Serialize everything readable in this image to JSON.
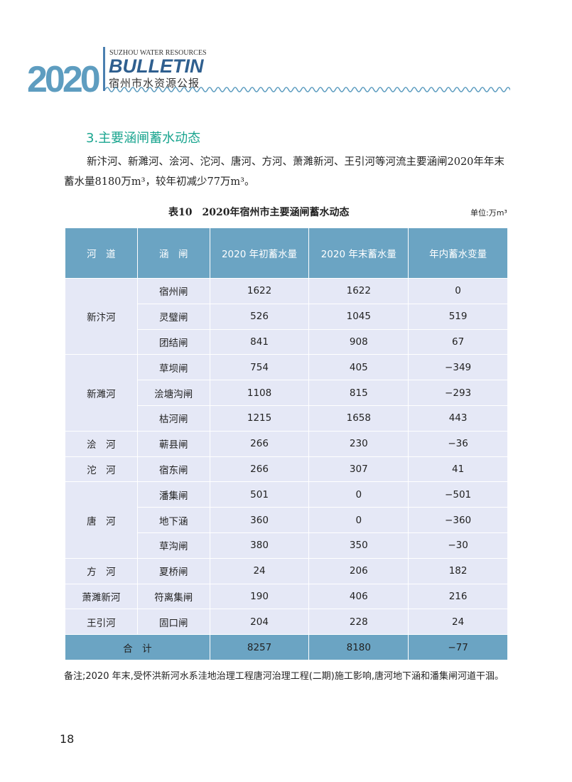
{
  "header": {
    "year": "2020",
    "english": "SUZHOU WATER RESOURCES",
    "bulletin": "BULLETIN",
    "chinese": "宿州市水资源公报"
  },
  "section_title": "3.主要涵闸蓄水动态",
  "paragraph": "新汴河、新濉河、浍河、沱河、唐河、方河、萧濉新河、王引河等河流主要涵闸2020年年末蓄水量8180万m³，较年初减少77万m³。",
  "table": {
    "title": "表10　2020年宿州市主要涵闸蓄水动态",
    "unit": "单位:万m³",
    "headers": [
      "河　道",
      "涵　闸",
      "2020 年初蓄水量",
      "2020 年末蓄水量",
      "年内蓄水变量"
    ],
    "groups": [
      {
        "river": "新汴河",
        "rows": [
          [
            "宿州闸",
            "1622",
            "1622",
            "0"
          ],
          [
            "灵璧闸",
            "526",
            "1045",
            "519"
          ],
          [
            "团结闸",
            "841",
            "908",
            "67"
          ]
        ]
      },
      {
        "river": "新濉河",
        "rows": [
          [
            "草坝闸",
            "754",
            "405",
            "−349"
          ],
          [
            "浍塘沟闸",
            "1108",
            "815",
            "−293"
          ],
          [
            "枯河闸",
            "1215",
            "1658",
            "443"
          ]
        ]
      },
      {
        "river": "浍　河",
        "rows": [
          [
            "蕲县闸",
            "266",
            "230",
            "−36"
          ]
        ]
      },
      {
        "river": "沱　河",
        "rows": [
          [
            "宿东闸",
            "266",
            "307",
            "41"
          ]
        ]
      },
      {
        "river": "唐　河",
        "rows": [
          [
            "潘集闸",
            "501",
            "0",
            "−501"
          ],
          [
            "地下涵",
            "360",
            "0",
            "−360"
          ],
          [
            "草沟闸",
            "380",
            "350",
            "−30"
          ]
        ]
      },
      {
        "river": "方　河",
        "rows": [
          [
            "夏桥闸",
            "24",
            "206",
            "182"
          ]
        ]
      },
      {
        "river": "萧濉新河",
        "rows": [
          [
            "符离集闸",
            "190",
            "406",
            "216"
          ]
        ]
      },
      {
        "river": "王引河",
        "rows": [
          [
            "固口闸",
            "204",
            "228",
            "24"
          ]
        ]
      }
    ],
    "total": {
      "label": "合　计",
      "start": "8257",
      "end": "8180",
      "change": "−77"
    }
  },
  "note": "备注;2020 年末,受怀洪新河水系洼地治理工程唐河治理工程(二期)施工影响,唐河地下涵和潘集闸河道干涸。",
  "page_number": "18"
}
